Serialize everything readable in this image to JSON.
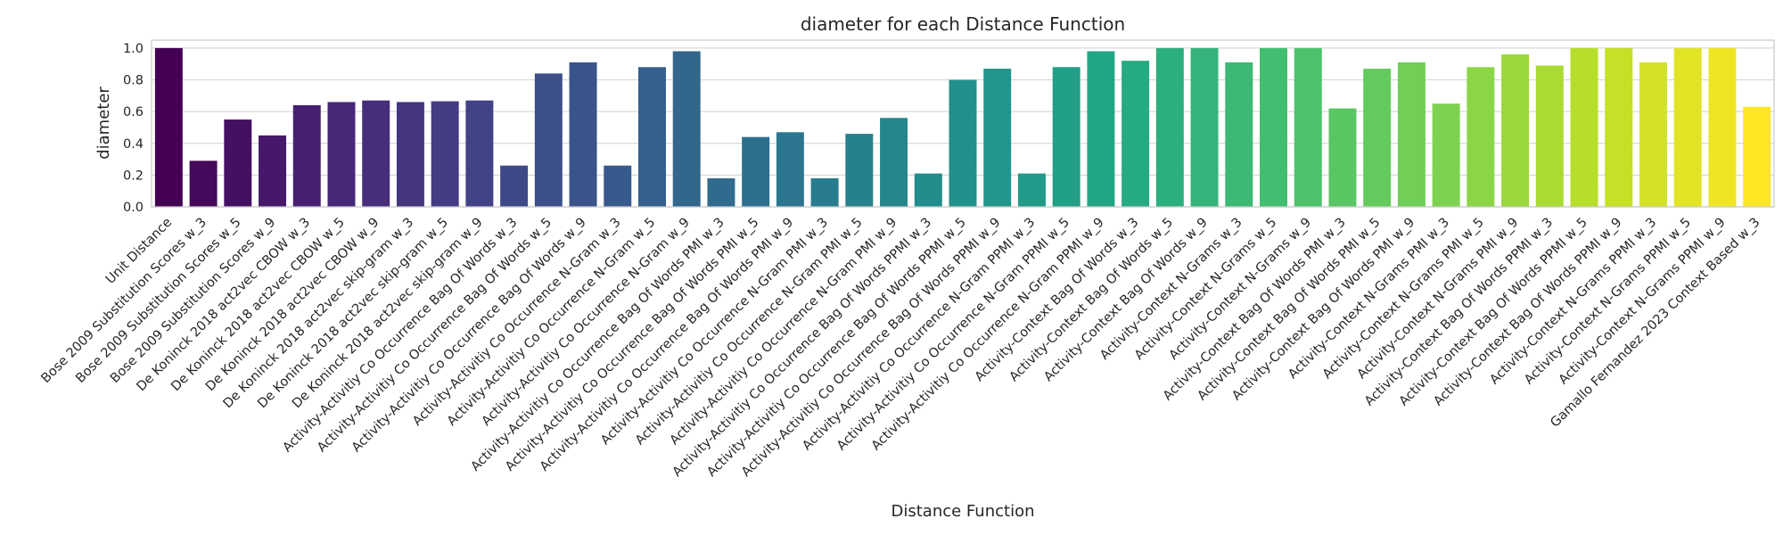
{
  "chart_data": {
    "type": "bar",
    "title": "diameter for each Distance Function",
    "xlabel": "Distance Function",
    "ylabel": "diameter",
    "ylim": [
      0,
      1.05
    ],
    "yticks": [
      "0.0",
      "0.2",
      "0.4",
      "0.6",
      "0.8",
      "1.0"
    ],
    "ytick_values": [
      0,
      0.2,
      0.4,
      0.6,
      0.8,
      1.0
    ],
    "grid": true,
    "palette": "viridis",
    "categories": [
      "Unit Distance",
      "Bose 2009 Substitution Scores w_3",
      "Bose 2009 Substitution Scores w_5",
      "Bose 2009 Substitution Scores w_9",
      "De Koninck 2018 act2vec CBOW w_3",
      "De Koninck 2018 act2vec CBOW w_5",
      "De Koninck 2018 act2vec CBOW w_9",
      "De Koninck 2018 act2vec skip-gram w_3",
      "De Koninck 2018 act2vec skip-gram w_5",
      "De Koninck 2018 act2vec skip-gram w_9",
      "Activity-Activitiy Co Occurrence Bag Of Words w_3",
      "Activity-Activitiy Co Occurrence Bag Of Words w_5",
      "Activity-Activitiy Co Occurrence Bag Of Words w_9",
      "Activity-Activitiy Co Occurrence N-Gram w_3",
      "Activity-Activitiy Co Occurrence N-Gram w_5",
      "Activity-Activitiy Co Occurrence N-Gram w_9",
      "Activity-Activitiy Co Occurrence Bag Of Words PMI w_3",
      "Activity-Activitiy Co Occurrence Bag Of Words PMI w_5",
      "Activity-Activitiy Co Occurrence Bag Of Words PMI w_9",
      "Activity-Activitiy Co Occurrence N-Gram PMI w_3",
      "Activity-Activitiy Co Occurrence N-Gram PMI w_5",
      "Activity-Activitiy Co Occurrence N-Gram PMI w_9",
      "Activity-Activitiy Co Occurrence Bag Of Words PPMI w_3",
      "Activity-Activitiy Co Occurrence Bag Of Words PPMI w_5",
      "Activity-Activitiy Co Occurrence Bag Of Words PPMI w_9",
      "Activity-Activitiy Co Occurrence N-Gram PPMI w_3",
      "Activity-Activitiy Co Occurrence N-Gram PPMI w_5",
      "Activity-Activitiy Co Occurrence N-Gram PPMI w_9",
      "Activity-Context Bag Of Words w_3",
      "Activity-Context Bag Of Words w_5",
      "Activity-Context Bag Of Words w_9",
      "Activity-Context N-Grams w_3",
      "Activity-Context N-Grams w_5",
      "Activity-Context N-Grams w_9",
      "Activity-Context Bag Of Words PMI w_3",
      "Activity-Context Bag Of Words PMI w_5",
      "Activity-Context Bag Of Words PMI w_9",
      "Activity-Context N-Grams PMI w_3",
      "Activity-Context N-Grams PMI w_5",
      "Activity-Context N-Grams PMI w_9",
      "Activity-Context Bag Of Words PPMI w_3",
      "Activity-Context Bag Of Words PPMI w_5",
      "Activity-Context Bag Of Words PPMI w_9",
      "Activity-Context N-Grams PPMI w_3",
      "Activity-Context N-Grams PPMI w_5",
      "Activity-Context N-Grams PPMI w_9",
      "Gamallo Fernandez 2023 Context Based w_3"
    ],
    "values": [
      1.0,
      0.29,
      0.55,
      0.45,
      0.64,
      0.66,
      0.67,
      0.66,
      0.665,
      0.67,
      0.26,
      0.84,
      0.91,
      0.26,
      0.88,
      0.98,
      0.18,
      0.44,
      0.47,
      0.18,
      0.46,
      0.56,
      0.21,
      0.8,
      0.87,
      0.21,
      0.88,
      0.98,
      0.92,
      1.0,
      1.0,
      0.91,
      1.0,
      1.0,
      0.62,
      0.87,
      0.91,
      0.65,
      0.88,
      0.96,
      0.89,
      1.0,
      1.0,
      0.91,
      1.0,
      1.0,
      0.63
    ]
  }
}
